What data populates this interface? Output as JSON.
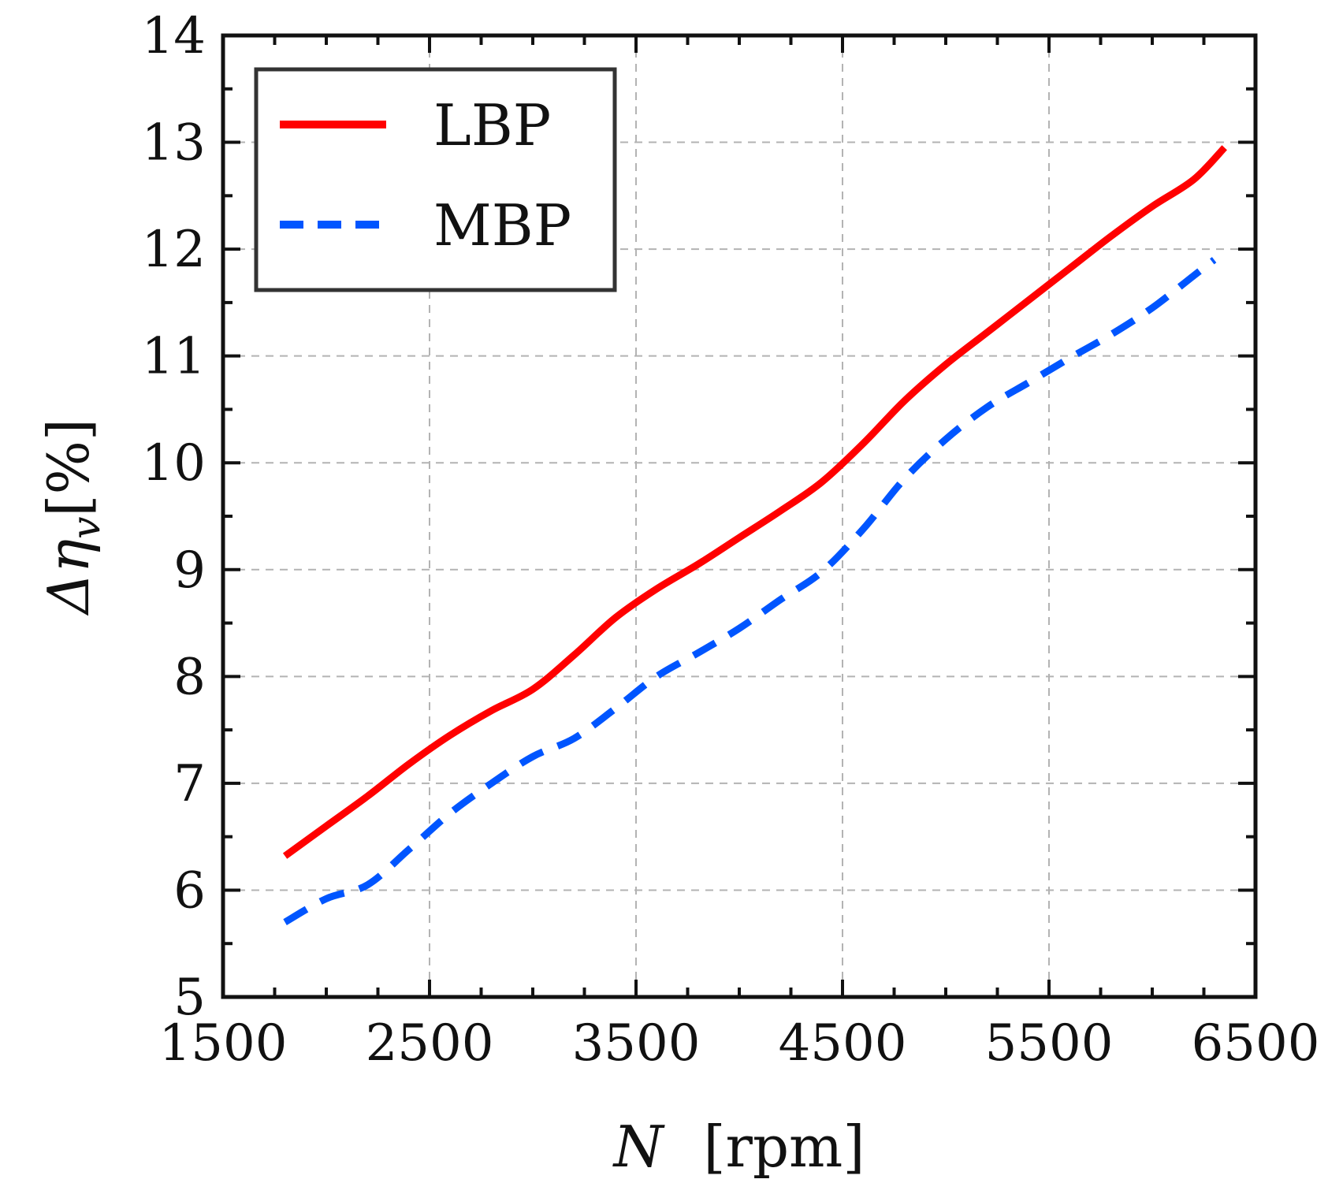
{
  "chart_data": {
    "type": "line",
    "title": "",
    "xlabel_var": "N",
    "xlabel_unit": "[rpm]",
    "ylabel_main": "Δη",
    "ylabel_sub": "v",
    "ylabel_unit": "[%]",
    "xlim": [
      1500,
      6500
    ],
    "ylim": [
      5,
      14
    ],
    "xticks": [
      1500,
      2500,
      3500,
      4500,
      5500,
      6500
    ],
    "yticks": [
      5,
      6,
      7,
      8,
      9,
      10,
      11,
      12,
      13,
      14
    ],
    "x_minor_step": 250,
    "y_minor_step": 0.5,
    "grid": true,
    "legend_position": "top-left",
    "series": [
      {
        "name": "LBP",
        "color": "#ff0000",
        "style": "solid",
        "points": [
          [
            1800,
            6.32
          ],
          [
            2000,
            6.6
          ],
          [
            2200,
            6.88
          ],
          [
            2400,
            7.18
          ],
          [
            2600,
            7.45
          ],
          [
            2800,
            7.68
          ],
          [
            3000,
            7.88
          ],
          [
            3200,
            8.2
          ],
          [
            3400,
            8.55
          ],
          [
            3600,
            8.82
          ],
          [
            3800,
            9.05
          ],
          [
            4000,
            9.3
          ],
          [
            4200,
            9.55
          ],
          [
            4400,
            9.82
          ],
          [
            4600,
            10.18
          ],
          [
            4800,
            10.58
          ],
          [
            5000,
            10.92
          ],
          [
            5200,
            11.22
          ],
          [
            5400,
            11.52
          ],
          [
            5600,
            11.82
          ],
          [
            5800,
            12.12
          ],
          [
            6000,
            12.4
          ],
          [
            6200,
            12.65
          ],
          [
            6350,
            12.95
          ]
        ]
      },
      {
        "name": "MBP",
        "color": "#0055ff",
        "style": "dashed",
        "points": [
          [
            1800,
            5.7
          ],
          [
            2000,
            5.92
          ],
          [
            2200,
            6.05
          ],
          [
            2400,
            6.38
          ],
          [
            2600,
            6.72
          ],
          [
            2800,
            7.0
          ],
          [
            3000,
            7.25
          ],
          [
            3200,
            7.42
          ],
          [
            3400,
            7.7
          ],
          [
            3600,
            8.0
          ],
          [
            3800,
            8.22
          ],
          [
            4000,
            8.45
          ],
          [
            4200,
            8.72
          ],
          [
            4400,
            8.98
          ],
          [
            4600,
            9.38
          ],
          [
            4800,
            9.85
          ],
          [
            5000,
            10.22
          ],
          [
            5200,
            10.52
          ],
          [
            5400,
            10.75
          ],
          [
            5600,
            10.98
          ],
          [
            5800,
            11.2
          ],
          [
            6000,
            11.45
          ],
          [
            6200,
            11.75
          ],
          [
            6300,
            11.9
          ]
        ]
      }
    ]
  }
}
